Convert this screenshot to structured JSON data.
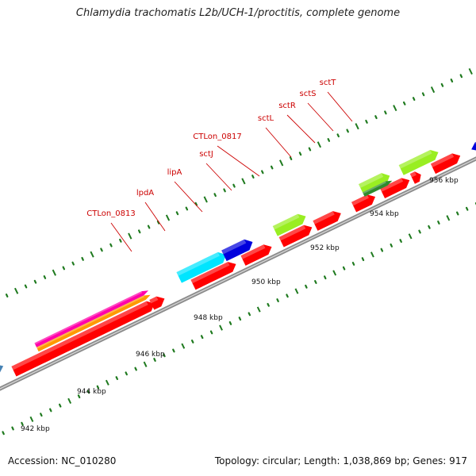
{
  "title": "Chlamydia trachomatis L2b/UCH-1/proctitis, complete genome",
  "footer": {
    "accession": "Accession: NC_010280",
    "info": "Topology: circular; Length: 1,038,869 bp; Genes: 917"
  },
  "axis": {
    "ticks": [
      {
        "kbp": 942,
        "label": "942 kbp"
      },
      {
        "kbp": 944,
        "label": "944 kbp"
      },
      {
        "kbp": 946,
        "label": "946 kbp"
      },
      {
        "kbp": 948,
        "label": "948 kbp"
      },
      {
        "kbp": 950,
        "label": "950 kbp"
      },
      {
        "kbp": 952,
        "label": "952 kbp"
      },
      {
        "kbp": 954,
        "label": "954 kbp"
      },
      {
        "kbp": 956,
        "label": "956 kbp"
      }
    ]
  },
  "colors": {
    "backbone": "#8c8c8c",
    "tick": "#1f7a1f",
    "label": "#cc0000",
    "red": "#ff0000",
    "blue": "#0000dd",
    "steelblue": "#4682b4",
    "magenta": "#ff00aa",
    "orange": "#ff9900",
    "cyan": "#00e5ff",
    "yellowgreen": "#99ee22",
    "darkgreen": "#2e8b2e"
  },
  "gene_labels": [
    "CTLon_0813",
    "lpdA",
    "lipA",
    "sctJ",
    "CTLon_0817",
    "sctL",
    "sctR",
    "sctS",
    "sctT"
  ]
}
